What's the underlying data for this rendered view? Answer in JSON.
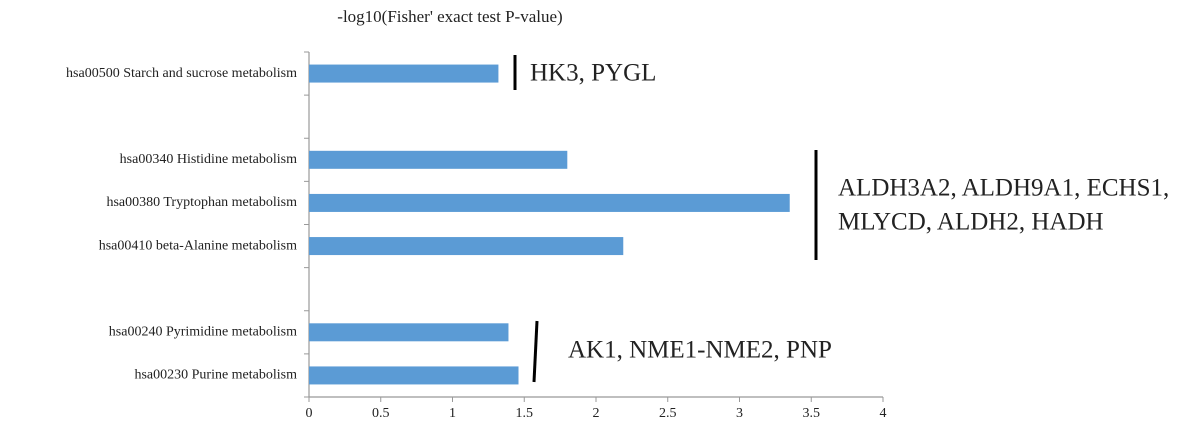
{
  "chart_data": {
    "type": "bar",
    "orientation": "horizontal",
    "title": "-log10(Fisher' exact test P-value)",
    "categories": [
      "hsa00500 Starch and sucrose metabolism",
      null,
      "hsa00340 Histidine metabolism",
      "hsa00380 Tryptophan metabolism",
      "hsa00410 beta-Alanine metabolism",
      null,
      "hsa00240 Pyrimidine metabolism",
      "hsa00230 Purine metabolism"
    ],
    "values": [
      1.32,
      null,
      1.8,
      3.35,
      2.19,
      null,
      1.39,
      1.46
    ],
    "color": "#5b9bd5",
    "xlim": [
      0,
      4
    ],
    "xticks": [
      0,
      0.5,
      1,
      1.5,
      2,
      2.5,
      3,
      3.5,
      4
    ],
    "annotations": [
      "HK3, PYGL",
      "ALDH3A2, ALDH9A1, ECHS1,",
      "MLYCD, ALDH2, HADH",
      "AK1, NME1-NME2, PNP"
    ]
  }
}
